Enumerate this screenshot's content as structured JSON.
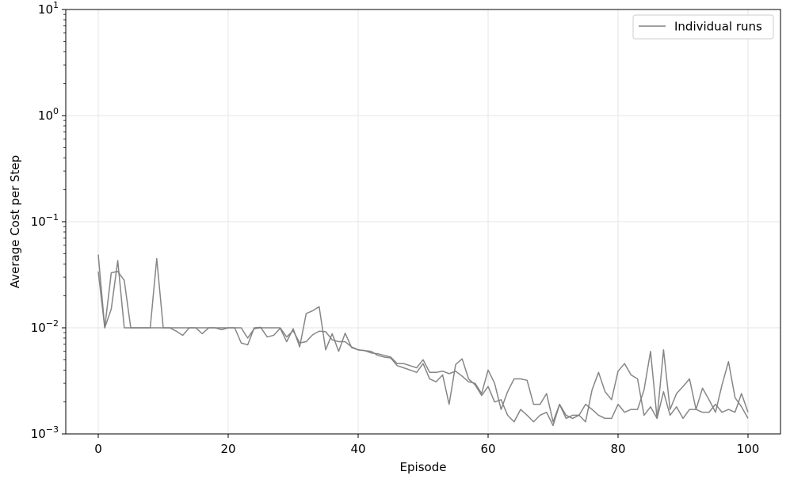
{
  "chart_data": {
    "type": "line",
    "title": "",
    "xlabel": "Episode",
    "ylabel": "Average Cost per Step",
    "xlim": [
      -5,
      105
    ],
    "ylim": [
      0.001,
      10
    ],
    "yscale": "log",
    "grid": true,
    "legend": {
      "placement": "top-right",
      "entries": [
        "Individual runs"
      ]
    },
    "x_ticks": [
      0,
      20,
      40,
      60,
      80,
      100
    ],
    "y_ticks": [
      {
        "value": 0.001,
        "base": "10",
        "exp": "−3"
      },
      {
        "value": 0.01,
        "base": "10",
        "exp": "−2"
      },
      {
        "value": 0.1,
        "base": "10",
        "exp": "−1"
      },
      {
        "value": 1,
        "base": "10",
        "exp": "0"
      },
      {
        "value": 10,
        "base": "10",
        "exp": "1"
      }
    ],
    "colors": {
      "line": "#808080",
      "grid": "#e6e6e6",
      "axis": "#000000"
    },
    "series": [
      {
        "values": [
          0.049,
          0.01,
          0.015,
          0.043,
          0.01,
          0.01,
          0.01,
          0.01,
          0.01,
          0.045,
          0.01,
          0.01,
          0.0093,
          0.0085,
          0.01,
          0.01,
          0.0088,
          0.01,
          0.01,
          0.0096,
          0.01,
          0.01,
          0.0072,
          0.0069,
          0.01,
          0.0101,
          0.0082,
          0.0085,
          0.0099,
          0.0074,
          0.0098,
          0.0066,
          0.0136,
          0.0145,
          0.0158,
          0.0062,
          0.0088,
          0.006,
          0.0089,
          0.0065,
          0.0062,
          0.0061,
          0.006,
          0.0055,
          0.0053,
          0.0052,
          0.0044,
          0.0042,
          0.004,
          0.0038,
          0.0046,
          0.0033,
          0.0031,
          0.0036,
          0.0019,
          0.0045,
          0.0051,
          0.0033,
          0.0029,
          0.0023,
          0.0028,
          0.002,
          0.0021,
          0.0015,
          0.0013,
          0.0017,
          0.0015,
          0.0013,
          0.0015,
          0.0016,
          0.0012,
          0.0019,
          0.0014,
          0.0015,
          0.0015,
          0.0013,
          0.0026,
          0.0038,
          0.0025,
          0.0021,
          0.0039,
          0.0046,
          0.0036,
          0.0033,
          0.0015,
          0.0018,
          0.0014,
          0.0062,
          0.0017,
          0.0024,
          0.0028,
          0.0033,
          0.0017,
          0.0027,
          0.0021,
          0.0016,
          0.0029,
          0.0048,
          0.0022,
          0.0018,
          0.0014
        ]
      },
      {
        "values": [
          0.034,
          0.01,
          0.033,
          0.034,
          0.028,
          0.01,
          0.01,
          0.01,
          0.01,
          0.01,
          0.01,
          0.01,
          0.01,
          0.01,
          0.01,
          0.01,
          0.01,
          0.01,
          0.01,
          0.01,
          0.01,
          0.01,
          0.01,
          0.008,
          0.0098,
          0.01,
          0.01,
          0.01,
          0.01,
          0.0082,
          0.0094,
          0.0072,
          0.0074,
          0.0086,
          0.0093,
          0.0092,
          0.0077,
          0.0074,
          0.0074,
          0.0066,
          0.0062,
          0.0061,
          0.0058,
          0.0057,
          0.0055,
          0.0053,
          0.0046,
          0.0046,
          0.0044,
          0.0042,
          0.005,
          0.0038,
          0.0038,
          0.0039,
          0.0037,
          0.0039,
          0.0035,
          0.0031,
          0.003,
          0.0024,
          0.004,
          0.003,
          0.0017,
          0.0025,
          0.0033,
          0.0033,
          0.0032,
          0.0019,
          0.0019,
          0.0024,
          0.0013,
          0.0019,
          0.0015,
          0.0014,
          0.0015,
          0.0019,
          0.0017,
          0.0015,
          0.0014,
          0.0014,
          0.0019,
          0.0016,
          0.0017,
          0.0017,
          0.0026,
          0.006,
          0.0014,
          0.0025,
          0.0015,
          0.0018,
          0.0014,
          0.0017,
          0.0017,
          0.0016,
          0.0016,
          0.0019,
          0.0016,
          0.0017,
          0.0016,
          0.0024,
          0.0016
        ]
      }
    ]
  }
}
